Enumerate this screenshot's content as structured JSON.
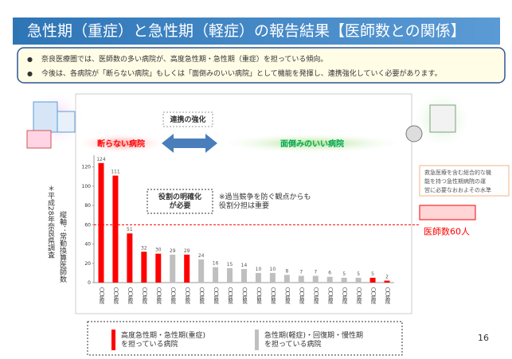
{
  "header": {
    "title": "急性期（重症）と急性期（軽症）の報告結果【医師数との関係】"
  },
  "bullets": [
    "奈良医療圏では、医師数の多い病院が、高度急性期・急性期（重症）を担っている傾向。",
    "今後は、各病院が「断らない病院」もしくは「面倒みのいい病院」として機能を発揮し、連携強化していく必要があります。"
  ],
  "chart_data": {
    "type": "bar",
    "categories": [
      "〇〇病院",
      "〇〇病院",
      "〇〇病院",
      "〇〇病院",
      "〇〇病院",
      "〇〇病院",
      "〇〇病院",
      "〇〇病院",
      "〇〇病院",
      "〇〇病院",
      "〇〇病院",
      "〇〇病院",
      "〇〇病院",
      "〇〇病院",
      "〇〇病院",
      "〇〇病院",
      "〇〇病院",
      "〇〇病院",
      "〇〇病院",
      "〇〇病院",
      "〇〇病院"
    ],
    "values": [
      124,
      111,
      51,
      32,
      30,
      29,
      29,
      24,
      16,
      15,
      14,
      10,
      10,
      8,
      7,
      7,
      6,
      5,
      5,
      5,
      2
    ],
    "bar_colors": [
      "#ff0000",
      "#ff0000",
      "#ff0000",
      "#ff0000",
      "#ff0000",
      "#bfbfbf",
      "#ff0000",
      "#bfbfbf",
      "#bfbfbf",
      "#bfbfbf",
      "#bfbfbf",
      "#bfbfbf",
      "#bfbfbf",
      "#bfbfbf",
      "#bfbfbf",
      "#bfbfbf",
      "#bfbfbf",
      "#bfbfbf",
      "#bfbfbf",
      "#ff0000",
      "#ff0000"
    ],
    "ylim": [
      0,
      128
    ],
    "yticks": [
      0,
      20,
      40,
      60,
      80,
      100,
      120
    ],
    "reference_line": {
      "value": 60,
      "label": "医師数60人",
      "color": "#ff0000"
    },
    "legend": [
      {
        "name": "高度急性期・急性期(重症)\nを担っている病院",
        "color": "#ff0000"
      },
      {
        "name": "急性期(軽症)・回復期・慢性期\nを担っている病院",
        "color": "#bfbfbf"
      }
    ],
    "notes": {
      "left": "断らない病院",
      "right": "面倒みのいい病院",
      "link": "連携の強化",
      "role": "役割の明確化\nが必要",
      "competition": "※過当競争を防ぐ観点からも\n役割分担は重要",
      "level": "救急医療を含む総合的な機\n能を持つ急性期病院の運\n営に必要なおおよその水準",
      "survey": "＊平成28年奈良県調査",
      "axis": "縦軸：常勤換算医師数"
    }
  },
  "page_number": "16"
}
